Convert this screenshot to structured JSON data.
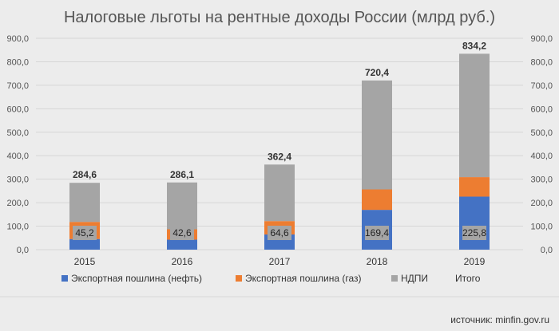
{
  "chart_data": {
    "type": "bar",
    "stacked": true,
    "title": "Налоговые льготы на рентные доходы России (млрд руб.)",
    "categories": [
      "2015",
      "2016",
      "2017",
      "2018",
      "2019"
    ],
    "series": [
      {
        "name": "Экспортная пошлина (нефть)",
        "values": [
          45.2,
          42.6,
          64.6,
          169.4,
          225.8
        ],
        "color": "#4472c4"
      },
      {
        "name": "Экспортная пошлина (газ)",
        "values": [
          73,
          44,
          57,
          87,
          83
        ],
        "color": "#ed7d31"
      },
      {
        "name": "НДПИ",
        "values": [
          166.4,
          199.5,
          240.8,
          464.0,
          525.4
        ],
        "color": "#a5a5a5"
      }
    ],
    "totals": {
      "name": "Итого",
      "values": [
        284.6,
        286.1,
        362.4,
        720.4,
        834.2
      ]
    },
    "total_labels": [
      "284,6",
      "286,1",
      "362,4",
      "720,4",
      "834,2"
    ],
    "inner_labels": [
      "45,2",
      "42,6",
      "64,6",
      "169,4",
      "225,8"
    ],
    "ylim": [
      0,
      900
    ],
    "yticks": [
      0,
      100,
      200,
      300,
      400,
      500,
      600,
      700,
      800,
      900
    ],
    "ytick_labels": [
      "0,0",
      "100,0",
      "200,0",
      "300,0",
      "400,0",
      "500,0",
      "600,0",
      "700,0",
      "800,0",
      "900,0"
    ],
    "secondary_axis": true,
    "grid": true,
    "legend_position": "bottom"
  },
  "source_text": "источник: minfin.gov.ru"
}
